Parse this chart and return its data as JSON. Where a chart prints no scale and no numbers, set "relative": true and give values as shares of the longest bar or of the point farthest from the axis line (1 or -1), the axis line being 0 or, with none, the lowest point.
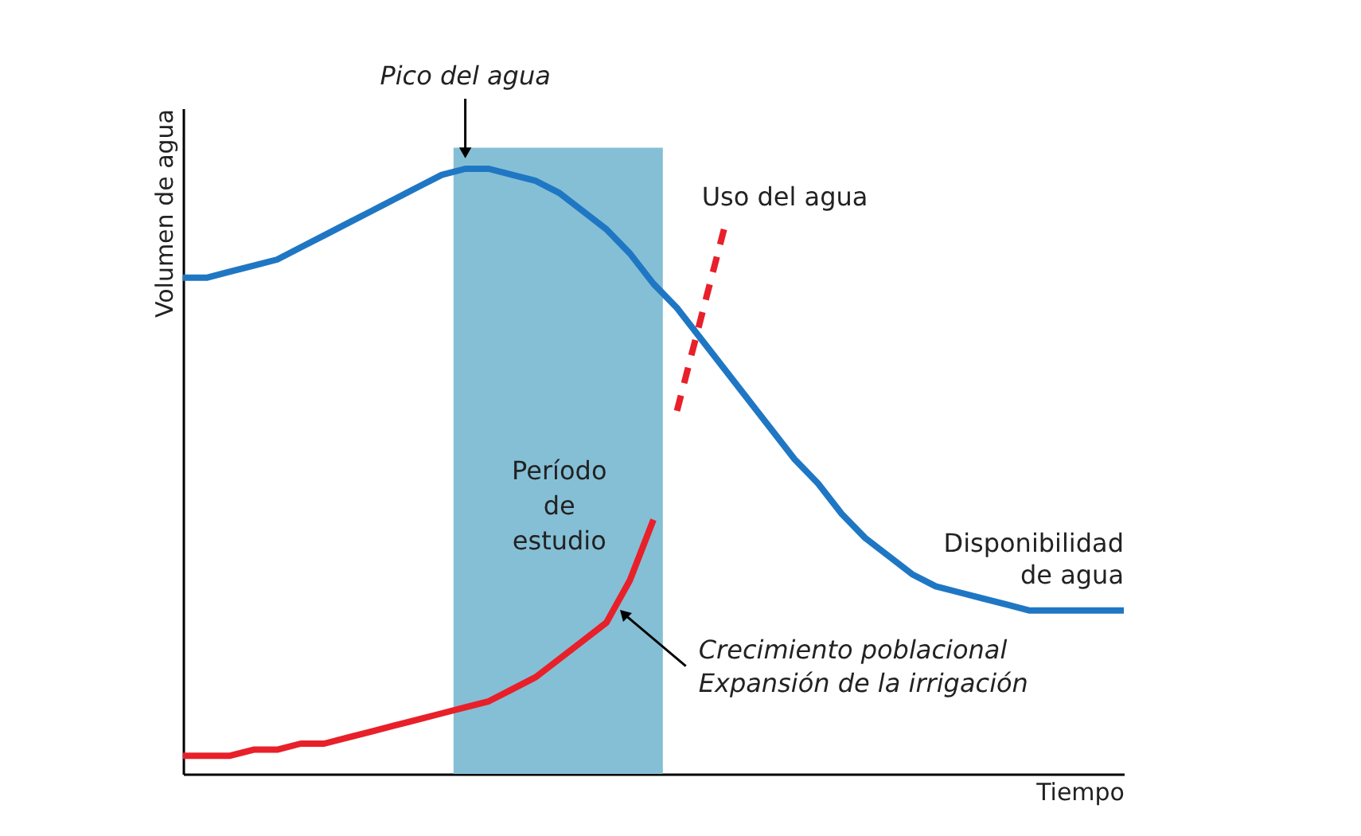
{
  "chart_data": {
    "type": "line",
    "relative": true,
    "xlabel": "Tiempo",
    "ylabel": "Volumen de agua",
    "line_style": "solid",
    "marker": "none",
    "categories": [
      null,
      null,
      null,
      null,
      null,
      null,
      null,
      null,
      null,
      null,
      null,
      null,
      null,
      null,
      null,
      null,
      null,
      null,
      null,
      null,
      null,
      null,
      null,
      null,
      null,
      null,
      null,
      null,
      null,
      null,
      null,
      null,
      null,
      null,
      null,
      null,
      null,
      null,
      null,
      null,
      null
    ],
    "series": [
      {
        "name": "Disponibilidad de agua",
        "color": "#1f77c4",
        "values": [
          0.82,
          0.82,
          0.83,
          0.84,
          0.85,
          0.87,
          0.89,
          0.91,
          0.93,
          0.95,
          0.97,
          0.99,
          1,
          1,
          0.99,
          0.98,
          0.96,
          0.93,
          0.9,
          0.86,
          0.81,
          0.77,
          0.72,
          0.67,
          0.62,
          0.57,
          0.52,
          0.48,
          0.43,
          0.39,
          0.36,
          0.33,
          0.31,
          0.3,
          0.29,
          0.28,
          0.27,
          0.27,
          0.27,
          0.27,
          0.27
        ]
      },
      {
        "color": "#e8202a",
        "values": [
          0.03,
          0.03,
          0.03,
          0.04,
          0.04,
          0.05,
          0.05,
          0.06,
          0.07,
          0.08,
          0.09,
          0.1,
          0.11,
          0.12,
          0.14,
          0.16,
          0.19,
          0.22,
          0.25,
          0.32,
          0.42,
          null,
          null,
          null,
          null,
          null,
          null,
          null,
          null,
          null,
          null,
          null,
          null,
          null,
          null,
          null,
          null,
          null,
          null,
          null,
          null
        ]
      },
      {
        "name": "Uso del agua",
        "color": "#e8202a",
        "line_style": "dashed",
        "values": [
          null,
          null,
          null,
          null,
          null,
          null,
          null,
          null,
          null,
          null,
          null,
          null,
          null,
          null,
          null,
          null,
          null,
          null,
          null,
          null,
          null,
          0.6,
          0.75,
          0.9,
          null,
          null,
          null,
          null,
          null,
          null,
          null,
          null,
          null,
          null,
          null,
          null,
          null,
          null,
          null,
          null,
          null
        ]
      }
    ],
    "annotations": [
      "Pico del agua",
      "Crecimiento poblacional Expansión de la irrigación",
      "Período de estudio"
    ]
  }
}
